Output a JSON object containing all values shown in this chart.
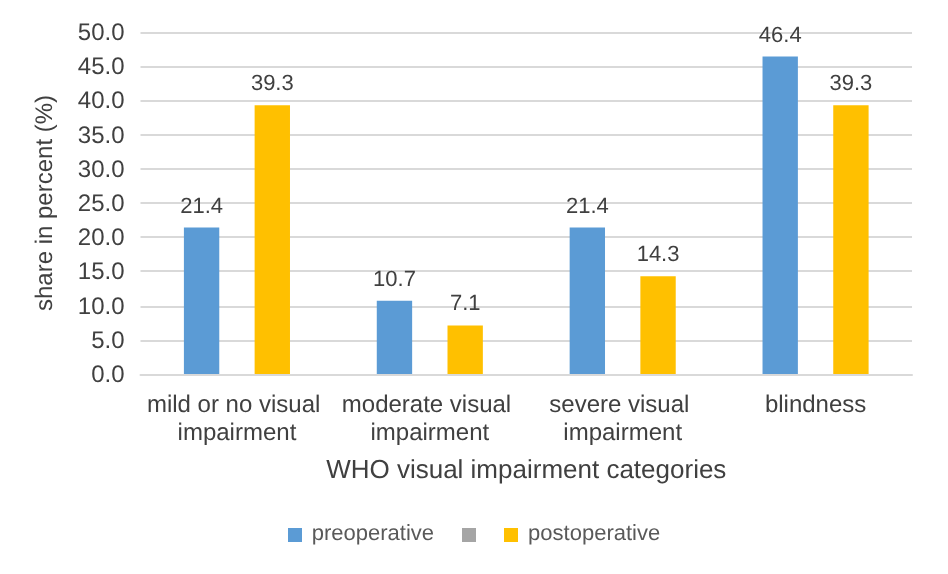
{
  "chart_data": {
    "type": "bar",
    "xlabel": "WHO visual impairment categories",
    "ylabel": "share in percent (%)",
    "categories": [
      "mild or no visual impairment",
      "moderate visual impairment",
      "severe visual impairment",
      "blindness"
    ],
    "series": [
      {
        "name": "preoperative",
        "color": "#5b9bd5",
        "values": [
          21.4,
          10.7,
          21.4,
          46.4
        ]
      },
      {
        "color": "#a5a5a5",
        "values": [
          null,
          null,
          null,
          null
        ]
      },
      {
        "name": "postoperative",
        "color": "#ffc000",
        "values": [
          39.3,
          7.1,
          14.3,
          39.3
        ]
      }
    ],
    "ylim": [
      0,
      50
    ],
    "yticks": [
      {
        "value": 0,
        "label": "0.0"
      },
      {
        "value": 5,
        "label": "5.0"
      },
      {
        "value": 10,
        "label": "10.0"
      },
      {
        "value": 15,
        "label": "15.0"
      },
      {
        "value": 20,
        "label": "20.0"
      },
      {
        "value": 25,
        "label": "25.0"
      },
      {
        "value": 30,
        "label": "30.0"
      },
      {
        "value": 35,
        "label": "35.0"
      },
      {
        "value": 40,
        "label": "40.0"
      },
      {
        "value": 45,
        "label": "45.0"
      },
      {
        "value": 50,
        "label": "50.0"
      }
    ],
    "grid": true,
    "legend": "bottom",
    "data_labels": true
  }
}
